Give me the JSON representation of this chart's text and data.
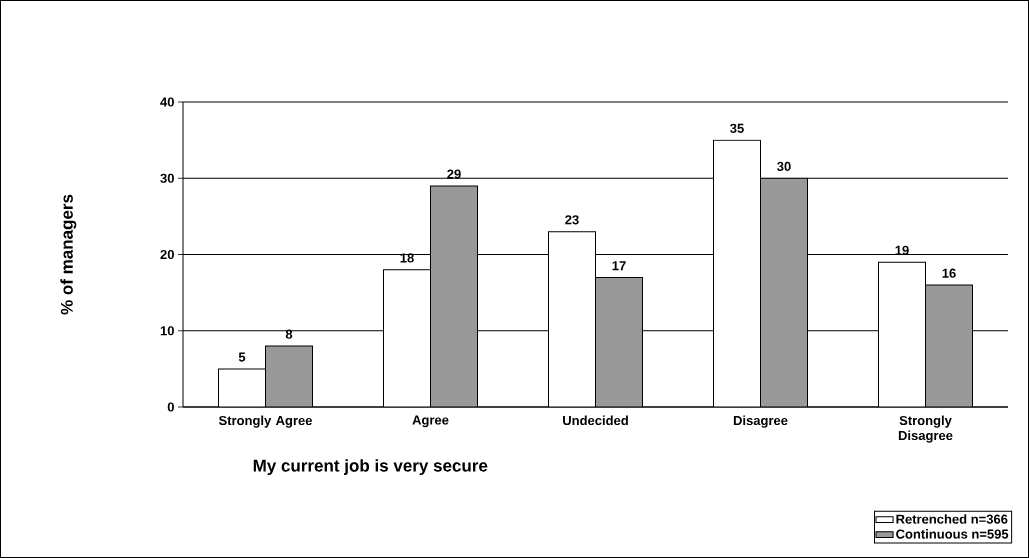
{
  "chart_data": {
    "type": "bar",
    "xlabel": "My current job is very secure",
    "ylabel": "% of managers",
    "categories": [
      "Strongly Agree",
      "Agree",
      "Undecided",
      "Disagree",
      "Strongly Disagree"
    ],
    "series": [
      {
        "name": "Retrenched n=366",
        "color": "#ffffff",
        "values": [
          5,
          18,
          23,
          35,
          19
        ]
      },
      {
        "name": "Continuous n=595",
        "color": "#999999",
        "values": [
          8,
          29,
          17,
          30,
          16
        ]
      }
    ],
    "ylim": [
      0,
      40
    ],
    "yticks": [
      0,
      10,
      20,
      30,
      40
    ],
    "grid": "y",
    "legend": "bottom right",
    "data_labels": true
  }
}
